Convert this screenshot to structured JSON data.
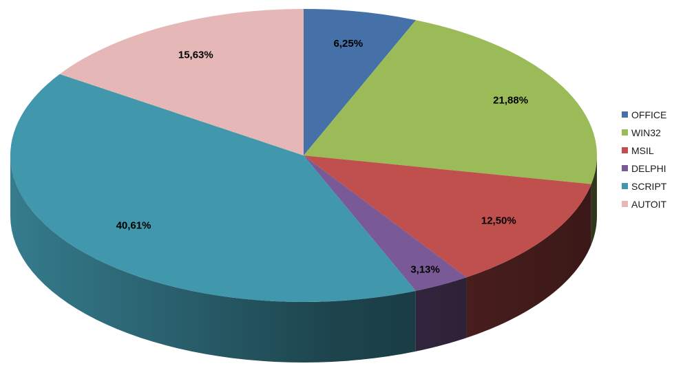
{
  "chart_data": {
    "type": "pie",
    "style": "3d",
    "legend_position": "right",
    "start_angle_deg": -90,
    "direction": "clockwise",
    "slices": [
      {
        "name": "OFFICE",
        "value": 6.25,
        "label": "6,25%",
        "color": "#4570A8"
      },
      {
        "name": "WIN32",
        "value": 21.88,
        "label": "21,88%",
        "color": "#9BBB59"
      },
      {
        "name": "MSIL",
        "value": 12.5,
        "label": "12,50%",
        "color": "#C0504D"
      },
      {
        "name": "DELPHI",
        "value": 3.13,
        "label": "3,13%",
        "color": "#7A5A96"
      },
      {
        "name": "SCRIPT",
        "value": 40.61,
        "label": "40,61%",
        "color": "#4197AC"
      },
      {
        "name": "AUTOIT",
        "value": 15.63,
        "label": "15,63%",
        "color": "#E5B8B7"
      }
    ]
  }
}
